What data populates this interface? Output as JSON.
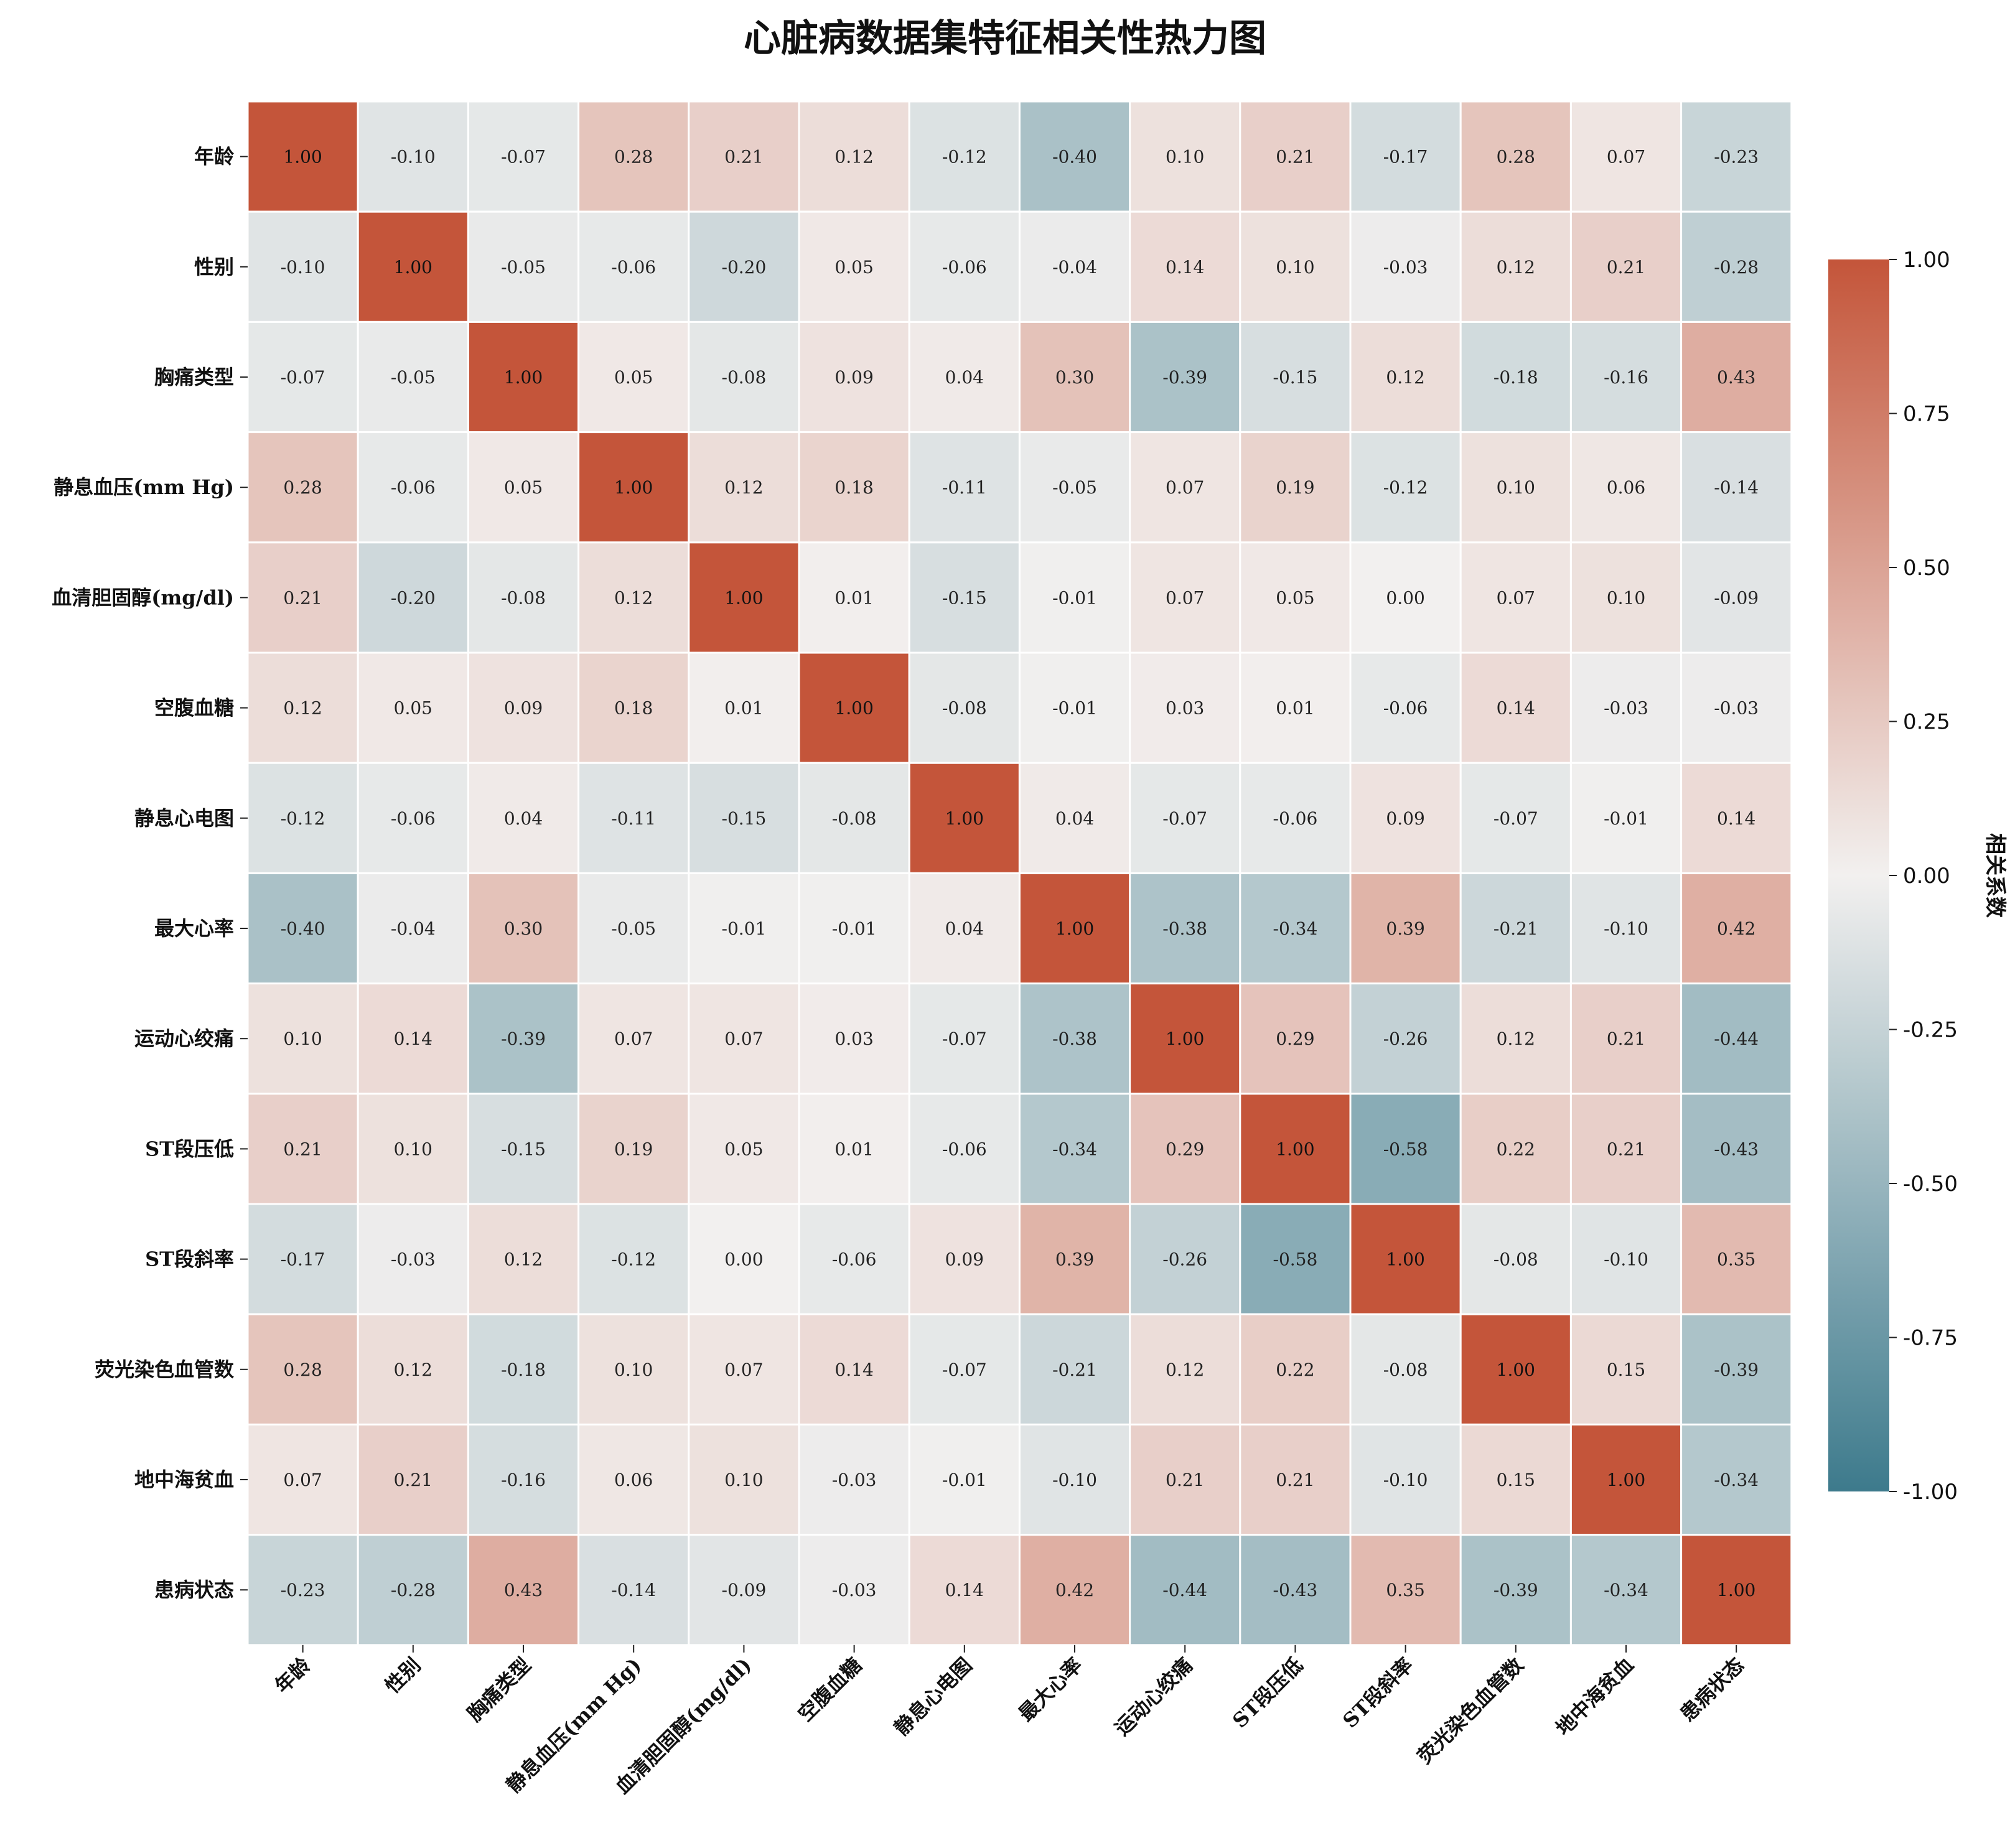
{
  "chart_data": {
    "type": "heatmap",
    "title": "心脏病数据集特征相关性热力图",
    "row_labels": [
      "年龄",
      "性别",
      "胸痛类型",
      "静息血压(mm Hg)",
      "血清胆固醇(mg/dl)",
      "空腹血糖",
      "静息心电图",
      "最大心率",
      "运动心绞痛",
      "ST段压低",
      "ST段斜率",
      "荧光染色血管数",
      "地中海贫血",
      "患病状态"
    ],
    "col_labels": [
      "年龄",
      "性别",
      "胸痛类型",
      "静息血压(mm Hg)",
      "血清胆固醇(mg/dl)",
      "空腹血糖",
      "静息心电图",
      "最大心率",
      "运动心绞痛",
      "ST段压低",
      "ST段斜率",
      "荧光染色血管数",
      "地中海贫血",
      "患病状态"
    ],
    "values": [
      [
        1.0,
        -0.1,
        -0.07,
        0.28,
        0.21,
        0.12,
        -0.12,
        -0.4,
        0.1,
        0.21,
        -0.17,
        0.28,
        0.07,
        -0.23
      ],
      [
        -0.1,
        1.0,
        -0.05,
        -0.06,
        -0.2,
        0.05,
        -0.06,
        -0.04,
        0.14,
        0.1,
        -0.03,
        0.12,
        0.21,
        -0.28
      ],
      [
        -0.07,
        -0.05,
        1.0,
        0.05,
        -0.08,
        0.09,
        0.04,
        0.3,
        -0.39,
        -0.15,
        0.12,
        -0.18,
        -0.16,
        0.43
      ],
      [
        0.28,
        -0.06,
        0.05,
        1.0,
        0.12,
        0.18,
        -0.11,
        -0.05,
        0.07,
        0.19,
        -0.12,
        0.1,
        0.06,
        -0.14
      ],
      [
        0.21,
        -0.2,
        -0.08,
        0.12,
        1.0,
        0.01,
        -0.15,
        -0.01,
        0.07,
        0.05,
        -0.0,
        0.07,
        0.1,
        -0.09
      ],
      [
        0.12,
        0.05,
        0.09,
        0.18,
        0.01,
        1.0,
        -0.08,
        -0.01,
        0.03,
        0.01,
        -0.06,
        0.14,
        -0.03,
        -0.03
      ],
      [
        -0.12,
        -0.06,
        0.04,
        -0.11,
        -0.15,
        -0.08,
        1.0,
        0.04,
        -0.07,
        -0.06,
        0.09,
        -0.07,
        -0.01,
        0.14
      ],
      [
        -0.4,
        -0.04,
        0.3,
        -0.05,
        -0.01,
        -0.01,
        0.04,
        1.0,
        -0.38,
        -0.34,
        0.39,
        -0.21,
        -0.1,
        0.42
      ],
      [
        0.1,
        0.14,
        -0.39,
        0.07,
        0.07,
        0.03,
        -0.07,
        -0.38,
        1.0,
        0.29,
        -0.26,
        0.12,
        0.21,
        -0.44
      ],
      [
        0.21,
        0.1,
        -0.15,
        0.19,
        0.05,
        0.01,
        -0.06,
        -0.34,
        0.29,
        1.0,
        -0.58,
        0.22,
        0.21,
        -0.43
      ],
      [
        -0.17,
        -0.03,
        0.12,
        -0.12,
        -0.0,
        -0.06,
        0.09,
        0.39,
        -0.26,
        -0.58,
        1.0,
        -0.08,
        -0.1,
        0.35
      ],
      [
        0.28,
        0.12,
        -0.18,
        0.1,
        0.07,
        0.14,
        -0.07,
        -0.21,
        0.12,
        0.22,
        -0.08,
        1.0,
        0.15,
        -0.39
      ],
      [
        0.07,
        0.21,
        -0.16,
        0.06,
        0.1,
        -0.03,
        -0.01,
        -0.1,
        0.21,
        0.21,
        -0.1,
        0.15,
        1.0,
        -0.34
      ],
      [
        -0.23,
        -0.28,
        0.43,
        -0.14,
        -0.09,
        -0.03,
        0.14,
        0.42,
        -0.44,
        -0.43,
        0.35,
        -0.39,
        -0.34,
        1.0
      ]
    ],
    "vmin": -1.0,
    "vmax": 1.0,
    "colormap": {
      "low": "#3d7a8c",
      "mid": "#f2f0ef",
      "high": "#c4553a"
    },
    "colorbar": {
      "label": "相关系数",
      "ticks": [
        "-1.00",
        "-0.75",
        "-0.50",
        "-0.25",
        "0.00",
        "0.25",
        "0.50",
        "0.75",
        "1.00"
      ]
    },
    "cell_format": "2 decimals",
    "grid": "white cell borders",
    "legend_placement": "right"
  }
}
